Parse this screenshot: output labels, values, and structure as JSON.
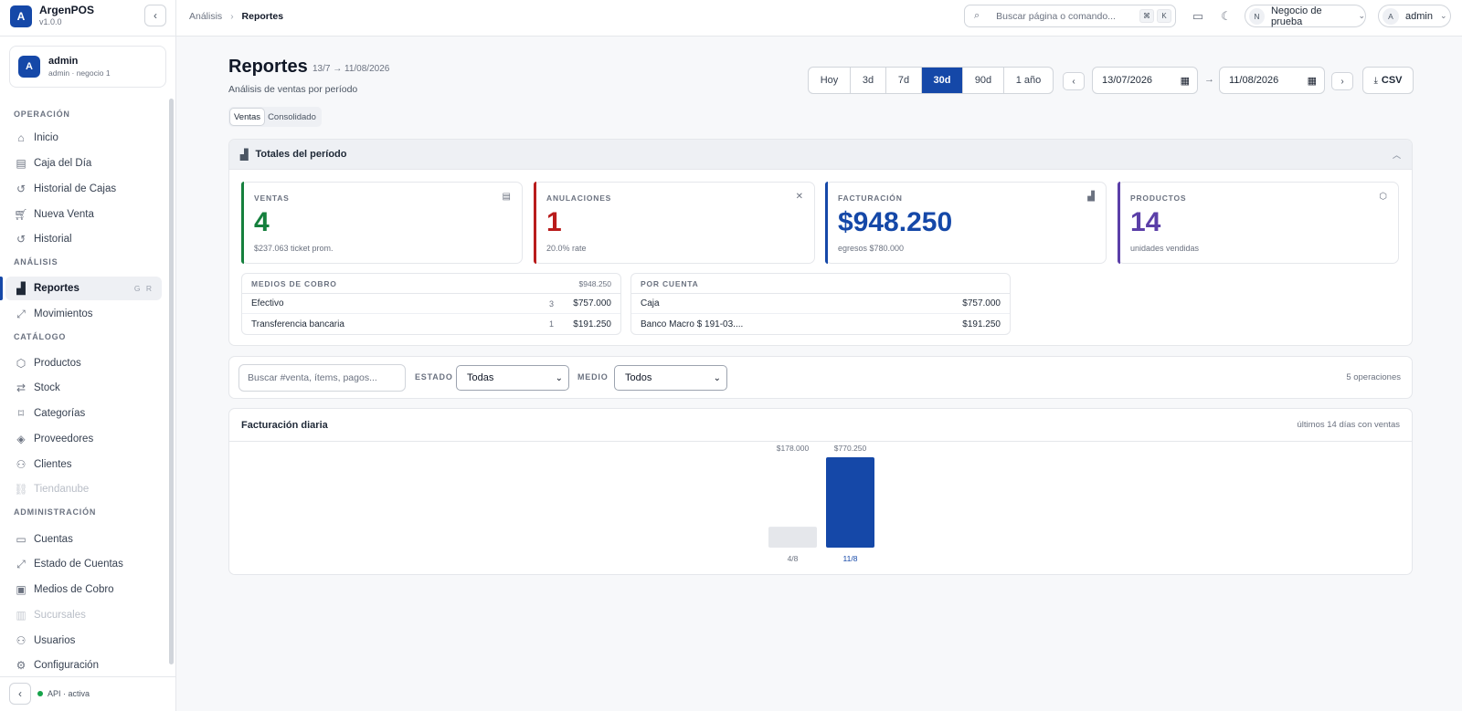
{
  "sidebar": {
    "brand": {
      "logo_letter": "A",
      "name": "ArgenPOS",
      "version": "v1.0.0"
    },
    "user": {
      "avatar_letter": "A",
      "name": "admin",
      "subtitle": "admin · negocio 1"
    },
    "sections": [
      {
        "title": "OPERACIÓN",
        "items": [
          {
            "label": "Inicio",
            "icon": "home-icon"
          },
          {
            "label": "Caja del Día",
            "icon": "receipt-icon"
          },
          {
            "label": "Historial de Cajas",
            "icon": "history-icon"
          },
          {
            "label": "Nueva Venta",
            "icon": "cart-icon"
          },
          {
            "label": "Historial",
            "icon": "history-icon"
          }
        ]
      },
      {
        "title": "ANÁLISIS",
        "items": [
          {
            "label": "Reportes",
            "icon": "bar-chart-icon",
            "active": true,
            "shortcut": "G R"
          },
          {
            "label": "Movimientos",
            "icon": "arrows-icon"
          }
        ]
      },
      {
        "title": "CATÁLOGO",
        "items": [
          {
            "label": "Productos",
            "icon": "box-icon"
          },
          {
            "label": "Stock",
            "icon": "swap-icon"
          },
          {
            "label": "Categorías",
            "icon": "tag-icon"
          },
          {
            "label": "Proveedores",
            "icon": "layers-icon"
          },
          {
            "label": "Clientes",
            "icon": "user-icon"
          },
          {
            "label": "Tiendanube",
            "icon": "link-icon",
            "disabled": true
          }
        ]
      },
      {
        "title": "ADMINISTRACIÓN",
        "items": [
          {
            "label": "Cuentas",
            "icon": "card-icon"
          },
          {
            "label": "Estado de Cuentas",
            "icon": "arrows-icon"
          },
          {
            "label": "Medios de Cobro",
            "icon": "cash-icon"
          },
          {
            "label": "Sucursales",
            "icon": "building-icon",
            "disabled": true
          },
          {
            "label": "Usuarios",
            "icon": "user-icon"
          },
          {
            "label": "Configuración",
            "icon": "gear-icon"
          }
        ]
      }
    ],
    "api_status": "API · activa"
  },
  "topbar": {
    "breadcrumb": {
      "parent": "Análisis",
      "current": "Reportes"
    },
    "search_placeholder": "Buscar página o comando...",
    "kbd_cmd": "⌘",
    "kbd_key": "K",
    "business": {
      "avatar_letter": "N",
      "label": "Negocio de prueba"
    },
    "account": {
      "avatar_letter": "A",
      "label": "admin"
    }
  },
  "page": {
    "title": "Reportes",
    "range_label": "13/7 → 11/08/2026",
    "subtitle": "Análisis de ventas por período",
    "tabs": [
      {
        "label": "Ventas",
        "active": true
      },
      {
        "label": "Consolidado",
        "active": false
      }
    ],
    "periods": [
      {
        "label": "Hoy"
      },
      {
        "label": "3d"
      },
      {
        "label": "7d"
      },
      {
        "label": "30d",
        "active": true
      },
      {
        "label": "90d"
      },
      {
        "label": "1 año"
      }
    ],
    "date_from": "13/07/2026",
    "date_arrow": "→",
    "date_to": "11/08/2026",
    "csv_label": "CSV"
  },
  "totals": {
    "title": "Totales del período",
    "kpis": [
      {
        "label": "VENTAS",
        "value": "4",
        "sub": "$237.063 ticket prom.",
        "color": "#15803d",
        "icon": "receipt-icon"
      },
      {
        "label": "ANULACIONES",
        "value": "1",
        "sub": "20.0% rate",
        "color": "#b91c1c",
        "icon": "close-icon"
      },
      {
        "label": "FACTURACIÓN",
        "value": "$948.250",
        "sub": "egresos $780.000",
        "color": "#1548a8",
        "icon": "bar-chart-icon"
      },
      {
        "label": "PRODUCTOS",
        "value": "14",
        "sub": "unidades vendidas",
        "color": "#5b3fa8",
        "icon": "box-icon"
      }
    ],
    "payment_methods": {
      "title": "MEDIOS DE COBRO",
      "total": "$948.250",
      "rows": [
        {
          "name": "Efectivo",
          "count": "3",
          "amount": "$757.000"
        },
        {
          "name": "Transferencia bancaria",
          "count": "1",
          "amount": "$191.250"
        }
      ]
    },
    "by_account": {
      "title": "POR CUENTA",
      "rows": [
        {
          "name": "Caja",
          "amount": "$757.000"
        },
        {
          "name": "Banco Macro $ 191-03....",
          "amount": "$191.250"
        }
      ]
    }
  },
  "filters": {
    "search_placeholder": "Buscar #venta, ítems, pagos...",
    "estado_label": "ESTADO",
    "estado_value": "Todas",
    "medio_label": "MEDIO",
    "medio_value": "Todos",
    "operations": "5 operaciones"
  },
  "chart": {
    "title": "Facturación diaria",
    "note": "últimos 14 días con ventas"
  },
  "chart_data": {
    "type": "bar",
    "categories": [
      "4/8",
      "11/8"
    ],
    "values": [
      178000,
      770250
    ],
    "value_labels": [
      "$178.000",
      "$770.250"
    ],
    "colors": [
      "#e5e7eb",
      "#1548a8"
    ],
    "title": "Facturación diaria",
    "xlabel": "",
    "ylabel": ""
  }
}
